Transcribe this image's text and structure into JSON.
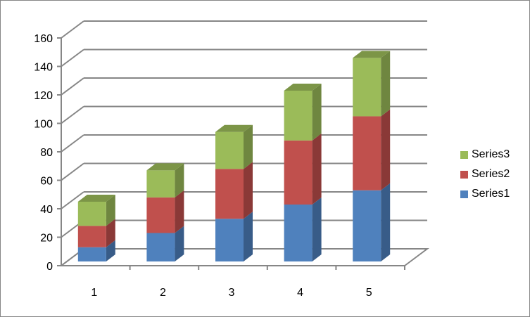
{
  "chart_data": {
    "type": "bar",
    "subtype": "stacked-3d-column",
    "title": "",
    "xlabel": "",
    "ylabel": "",
    "categories": [
      "1",
      "2",
      "3",
      "4",
      "5"
    ],
    "series": [
      {
        "name": "Series1",
        "color": "#4F81BD",
        "values": [
          10,
          20,
          30,
          40,
          50
        ]
      },
      {
        "name": "Series2",
        "color": "#C0504D",
        "values": [
          15,
          25,
          35,
          45,
          52
        ]
      },
      {
        "name": "Series3",
        "color": "#9BBB59",
        "values": [
          17,
          19,
          26,
          35,
          41
        ]
      }
    ],
    "y_ticks": [
      "0",
      "20",
      "40",
      "60",
      "80",
      "100",
      "120",
      "140",
      "160"
    ],
    "ylim": [
      0,
      160
    ],
    "grid": true,
    "legend_position": "right",
    "legend": [
      "Series3",
      "Series2",
      "Series1"
    ]
  }
}
